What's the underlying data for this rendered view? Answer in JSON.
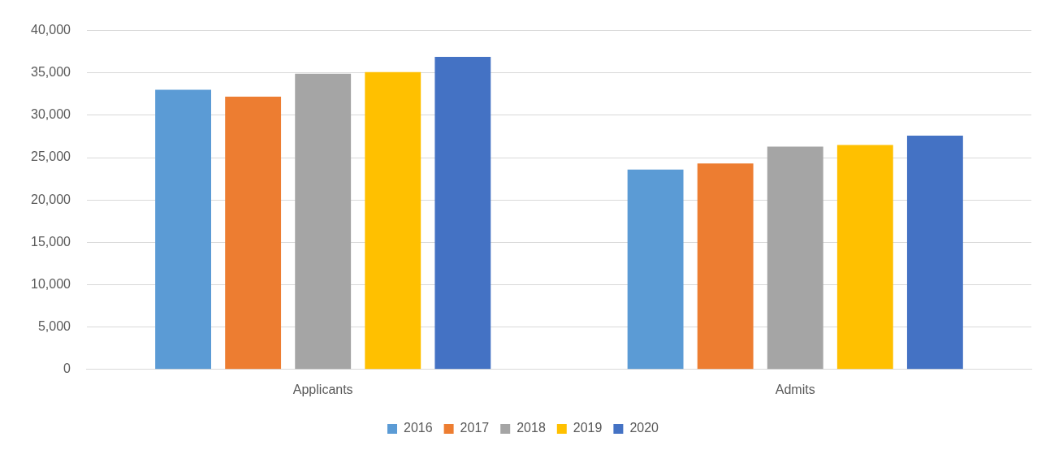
{
  "chart_data": {
    "type": "bar",
    "categories": [
      "Applicants",
      "Admits"
    ],
    "series": [
      {
        "name": "2016",
        "color": "#5b9bd5",
        "values": [
          33000,
          23600
        ]
      },
      {
        "name": "2017",
        "color": "#ed7d31",
        "values": [
          32200,
          24300
        ]
      },
      {
        "name": "2018",
        "color": "#a5a5a5",
        "values": [
          34900,
          26300
        ]
      },
      {
        "name": "2019",
        "color": "#ffc000",
        "values": [
          35100,
          26500
        ]
      },
      {
        "name": "2020",
        "color": "#4472c4",
        "values": [
          36900,
          27600
        ]
      }
    ],
    "ylim": [
      0,
      40000
    ],
    "yticks": [
      0,
      {
        "value": 5000,
        "label": "5,000"
      },
      {
        "value": 10000,
        "label": "10,000"
      },
      {
        "value": 15000,
        "label": "15,000"
      },
      {
        "value": 20000,
        "label": "20,000"
      },
      {
        "value": 25000,
        "label": "25,000"
      },
      {
        "value": 30000,
        "label": "30,000"
      },
      {
        "value": 35000,
        "label": "35,000"
      },
      {
        "value": 40000,
        "label": "40,000"
      }
    ],
    "grid": "y",
    "legend": "bottom"
  }
}
